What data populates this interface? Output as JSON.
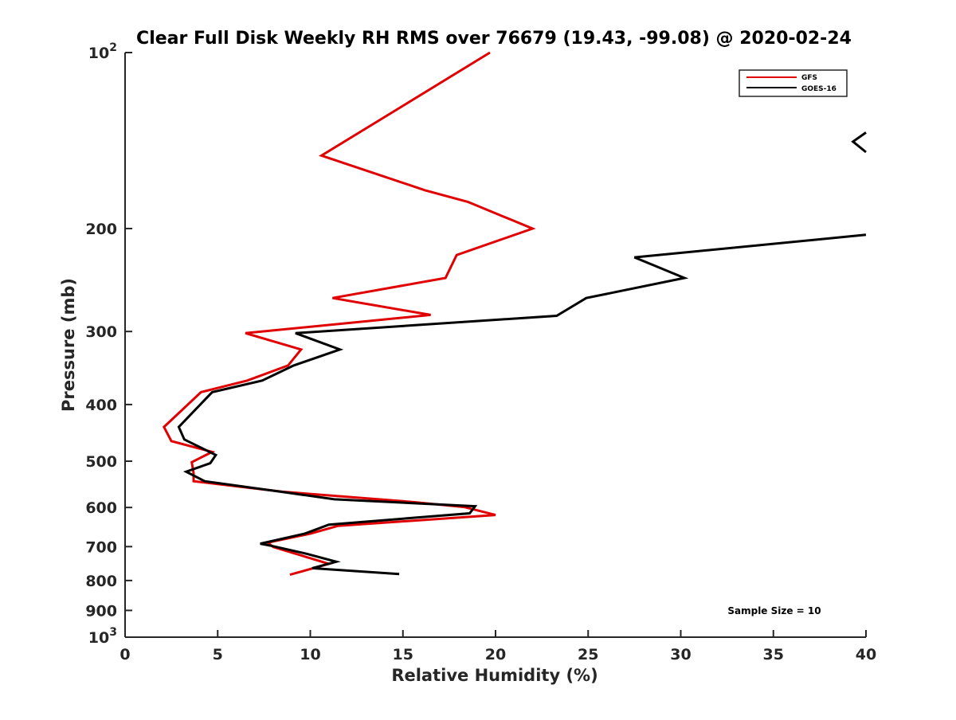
{
  "chart_data": {
    "type": "line",
    "title": "Clear Full Disk Weekly RH RMS over 76679 (19.43, -99.08) @ 2020-02-24",
    "xlabel": "Relative Humidity (%)",
    "ylabel": "Pressure (mb)",
    "xlim": [
      0,
      40
    ],
    "ylim": [
      100,
      1000
    ],
    "y_scale": "log",
    "y_reversed": true,
    "x_ticks": [
      "0",
      "5",
      "10",
      "15",
      "20",
      "25",
      "30",
      "35",
      "40"
    ],
    "y_ticks": [
      {
        "value": 100,
        "base": "10",
        "exp": "2"
      },
      {
        "value": 200,
        "label": "200"
      },
      {
        "value": 300,
        "label": "300"
      },
      {
        "value": 400,
        "label": "400"
      },
      {
        "value": 500,
        "label": "500"
      },
      {
        "value": 600,
        "label": "600"
      },
      {
        "value": 700,
        "label": "700"
      },
      {
        "value": 800,
        "label": "800"
      },
      {
        "value": 900,
        "label": "900"
      },
      {
        "value": 1000,
        "base": "10",
        "exp": "3"
      }
    ],
    "grid": false,
    "legend_position": "top-right",
    "annotation": "Sample Size = 10",
    "series": [
      {
        "name": "GFS",
        "color": "#e00000",
        "points": [
          [
            19.7,
            100
          ],
          [
            14.7,
            125
          ],
          [
            10.6,
            150
          ],
          [
            16.2,
            172
          ],
          [
            18.5,
            180
          ],
          [
            22.0,
            200
          ],
          [
            17.9,
            222
          ],
          [
            17.3,
            243
          ],
          [
            11.2,
            263
          ],
          [
            16.5,
            281
          ],
          [
            6.5,
            302
          ],
          [
            9.5,
            322
          ],
          [
            8.8,
            343
          ],
          [
            6.6,
            364
          ],
          [
            4.1,
            381
          ],
          [
            2.1,
            437
          ],
          [
            2.5,
            462
          ],
          [
            4.7,
            482
          ],
          [
            3.6,
            502
          ],
          [
            3.7,
            524
          ],
          [
            3.7,
            541
          ],
          [
            8.5,
            564
          ],
          [
            15.5,
            587
          ],
          [
            18.3,
            599
          ],
          [
            20.0,
            618
          ],
          [
            11.5,
            645
          ],
          [
            10.0,
            665
          ],
          [
            7.7,
            689
          ],
          [
            8.0,
            701
          ],
          [
            11.0,
            749
          ],
          [
            8.9,
            782
          ]
        ]
      },
      {
        "name": "GOES-16",
        "color": "#000000",
        "points": [
          [
            40.0,
            205
          ],
          [
            27.5,
            224
          ],
          [
            30.2,
            243
          ],
          [
            24.9,
            263
          ],
          [
            23.3,
            282
          ],
          [
            9.2,
            302
          ],
          [
            11.6,
            322
          ],
          [
            9.1,
            343
          ],
          [
            7.4,
            364
          ],
          [
            4.7,
            381
          ],
          [
            2.9,
            437
          ],
          [
            3.2,
            459
          ],
          [
            4.9,
            488
          ],
          [
            4.6,
            504
          ],
          [
            3.3,
            521
          ],
          [
            4.3,
            541
          ],
          [
            8.6,
            565
          ],
          [
            11.3,
            581
          ],
          [
            18.9,
            597
          ],
          [
            18.6,
            614
          ],
          [
            11.0,
            642
          ],
          [
            9.7,
            665
          ],
          [
            7.3,
            692
          ],
          [
            8.0,
            699
          ],
          [
            9.8,
            720
          ],
          [
            11.4,
            743
          ],
          [
            10.1,
            762
          ],
          [
            14.8,
            780
          ]
        ]
      },
      {
        "name": "",
        "color": "#000000",
        "points": [
          [
            40.0,
            137
          ],
          [
            39.3,
            142
          ],
          [
            40.0,
            148
          ]
        ]
      }
    ]
  }
}
